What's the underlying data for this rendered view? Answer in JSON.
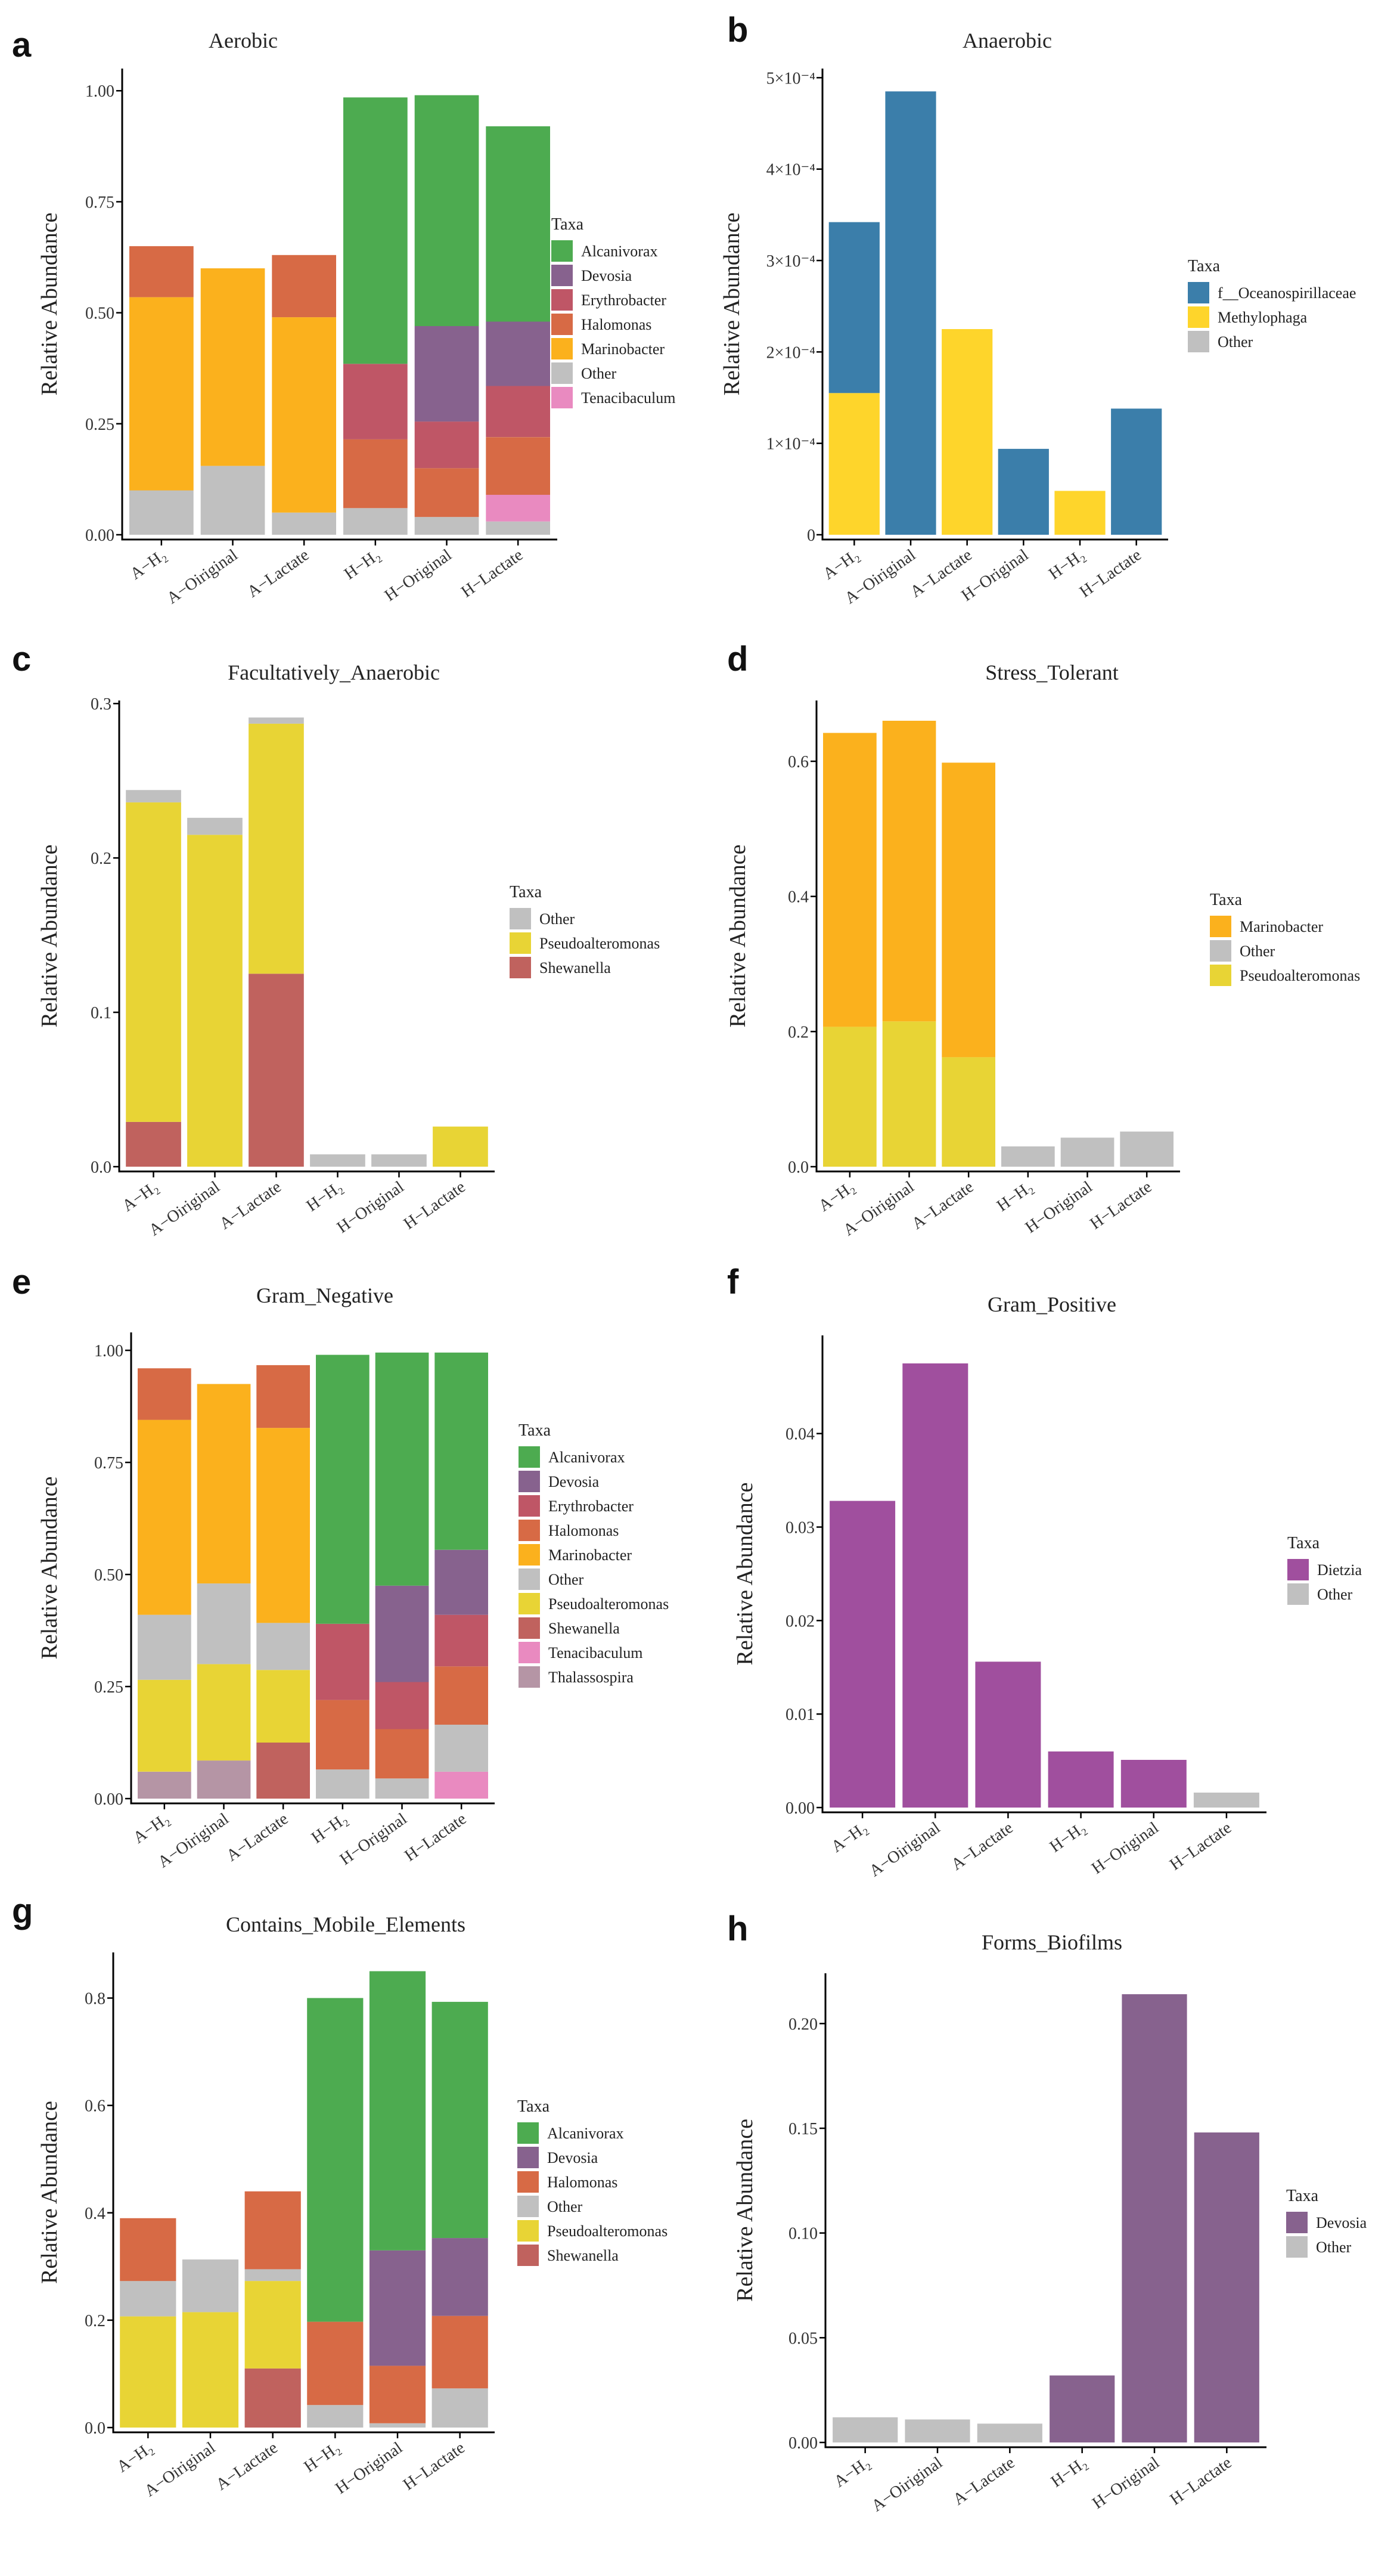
{
  "colors": {
    "Alcanivorax": "#4dab50",
    "Devosia": "#87628e",
    "Erythrobacter": "#bf5666",
    "Halomonas": "#d76a45",
    "Marinobacter": "#fbb11d",
    "Other": "#c0c0c0",
    "Tenacibaculum": "#e98ac0",
    "f__Oceanospirillaceae": "#3b7eaa",
    "Methylophaga": "#fed52b",
    "Pseudoalteromonas": "#e8d435",
    "Shewanella": "#c0625e",
    "Thalassospira": "#b595a5",
    "Dietzia": "#a04f9e"
  },
  "chart_data": [
    {
      "letter": "a",
      "type": "bar",
      "stacked": true,
      "title": "Aerobic",
      "ylabel": "Relative Abundance",
      "categories": [
        "A−H₂",
        "A−Oiriginal",
        "A−Lactate",
        "H−H₂",
        "H−Original",
        "H−Lactate"
      ],
      "ylim": [
        0,
        1.05
      ],
      "yticks": [
        0.0,
        0.25,
        0.5,
        0.75,
        1.0
      ],
      "tick_labels": [
        "0.00",
        "0.25",
        "0.50",
        "0.75",
        "1.00"
      ],
      "legend_title": "Taxa",
      "legend": [
        "Alcanivorax",
        "Devosia",
        "Erythrobacter",
        "Halomonas",
        "Marinobacter",
        "Other",
        "Tenacibaculum"
      ],
      "series": [
        {
          "name": "Other",
          "values": [
            0.1,
            0.155,
            0.05,
            0.06,
            0.04,
            0.03
          ]
        },
        {
          "name": "Tenacibaculum",
          "values": [
            0,
            0,
            0,
            0,
            0,
            0.06
          ]
        },
        {
          "name": "Marinobacter",
          "values": [
            0.435,
            0.445,
            0.44,
            0,
            0,
            0
          ]
        },
        {
          "name": "Halomonas",
          "values": [
            0.115,
            0,
            0.14,
            0.155,
            0.11,
            0.13
          ]
        },
        {
          "name": "Erythrobacter",
          "values": [
            0,
            0,
            0,
            0.17,
            0.105,
            0.115
          ]
        },
        {
          "name": "Devosia",
          "values": [
            0,
            0,
            0,
            0,
            0.215,
            0.145
          ]
        },
        {
          "name": "Alcanivorax",
          "values": [
            0,
            0,
            0,
            0.6,
            0.52,
            0.44
          ]
        }
      ]
    },
    {
      "letter": "b",
      "type": "bar",
      "stacked": true,
      "title": "Anaerobic",
      "ylabel": "Relative Abundance",
      "categories": [
        "A−H₂",
        "A−Oiriginal",
        "A−Lactate",
        "H−Original",
        "H−H₂",
        "H−Lactate"
      ],
      "ylim": [
        0,
        0.00051
      ],
      "yticks": [
        0,
        0.0001,
        0.0002,
        0.0003,
        0.0004,
        0.0005
      ],
      "tick_labels": [
        "0",
        "1×10⁻⁴",
        "2×10⁻⁴",
        "3×10⁻⁴",
        "4×10⁻⁴",
        "5×10⁻⁴"
      ],
      "legend_title": "Taxa",
      "legend": [
        "f__Oceanospirillaceae",
        "Methylophaga",
        "Other"
      ],
      "series": [
        {
          "name": "Methylophaga",
          "values": [
            0.000155,
            0,
            0.000225,
            0,
            4.8e-05,
            0
          ]
        },
        {
          "name": "f__Oceanospirillaceae",
          "values": [
            0.000187,
            0.000485,
            0,
            9.4e-05,
            0,
            0.000138
          ]
        }
      ]
    },
    {
      "letter": "c",
      "type": "bar",
      "stacked": true,
      "title": "Facultatively_Anaerobic",
      "ylabel": "Relative Abundance",
      "categories": [
        "A−H₂",
        "A−Oiriginal",
        "A−Lactate",
        "H−H₂",
        "H−Original",
        "H−Lactate"
      ],
      "ylim": [
        0,
        0.302
      ],
      "yticks": [
        0.0,
        0.1,
        0.2,
        0.3
      ],
      "tick_labels": [
        "0.0",
        "0.1",
        "0.2",
        "0.3"
      ],
      "legend_title": "Taxa",
      "legend": [
        "Other",
        "Pseudoalteromonas",
        "Shewanella"
      ],
      "series": [
        {
          "name": "Shewanella",
          "values": [
            0.029,
            0,
            0.125,
            0,
            0,
            0
          ]
        },
        {
          "name": "Pseudoalteromonas",
          "values": [
            0.207,
            0.215,
            0.162,
            0,
            0,
            0.026
          ]
        },
        {
          "name": "Other",
          "values": [
            0.008,
            0.011,
            0.004,
            0.008,
            0.008,
            0
          ]
        }
      ]
    },
    {
      "letter": "d",
      "type": "bar",
      "stacked": true,
      "title": "Stress_Tolerant",
      "ylabel": "Relative Abundance",
      "categories": [
        "A−H₂",
        "A−Oiriginal",
        "A−Lactate",
        "H−H₂",
        "H−Original",
        "H−Lactate"
      ],
      "ylim": [
        0,
        0.69
      ],
      "yticks": [
        0.0,
        0.2,
        0.4,
        0.6
      ],
      "tick_labels": [
        "0.0",
        "0.2",
        "0.4",
        "0.6"
      ],
      "legend_title": "Taxa",
      "legend": [
        "Marinobacter",
        "Other",
        "Pseudoalteromonas"
      ],
      "series": [
        {
          "name": "Pseudoalteromonas",
          "values": [
            0.207,
            0.215,
            0.162,
            0,
            0,
            0
          ]
        },
        {
          "name": "Marinobacter",
          "values": [
            0.435,
            0.445,
            0.436,
            0,
            0,
            0
          ]
        },
        {
          "name": "Other",
          "values": [
            0,
            0,
            0,
            0.03,
            0.043,
            0.052
          ]
        }
      ]
    },
    {
      "letter": "e",
      "type": "bar",
      "stacked": true,
      "title": "Gram_Negative",
      "ylabel": "Relative Abundance",
      "categories": [
        "A−H₂",
        "A−Oiriginal",
        "A−Lactate",
        "H−H₂",
        "H−Original",
        "H−Lactate"
      ],
      "ylim": [
        0,
        1.04
      ],
      "yticks": [
        0.0,
        0.25,
        0.5,
        0.75,
        1.0
      ],
      "tick_labels": [
        "0.00",
        "0.25",
        "0.50",
        "0.75",
        "1.00"
      ],
      "legend_title": "Taxa",
      "legend": [
        "Alcanivorax",
        "Devosia",
        "Erythrobacter",
        "Halomonas",
        "Marinobacter",
        "Other",
        "Pseudoalteromonas",
        "Shewanella",
        "Tenacibaculum",
        "Thalassospira"
      ],
      "series": [
        {
          "name": "Tenacibaculum",
          "values": [
            0,
            0,
            0,
            0,
            0,
            0.06
          ]
        },
        {
          "name": "Thalassospira",
          "values": [
            0.06,
            0.085,
            0,
            0,
            0,
            0
          ]
        },
        {
          "name": "Shewanella",
          "values": [
            0,
            0,
            0.125,
            0,
            0,
            0
          ]
        },
        {
          "name": "Pseudoalteromonas",
          "values": [
            0.205,
            0.215,
            0.162,
            0,
            0,
            0
          ]
        },
        {
          "name": "Other",
          "values": [
            0.145,
            0.18,
            0.105,
            0.065,
            0.045,
            0.105
          ]
        },
        {
          "name": "Marinobacter",
          "values": [
            0.435,
            0.445,
            0.435,
            0,
            0,
            0
          ]
        },
        {
          "name": "Halomonas",
          "values": [
            0.115,
            0,
            0.14,
            0.155,
            0.11,
            0.13
          ]
        },
        {
          "name": "Erythrobacter",
          "values": [
            0,
            0,
            0,
            0.17,
            0.105,
            0.115
          ]
        },
        {
          "name": "Devosia",
          "values": [
            0,
            0,
            0,
            0,
            0.215,
            0.145
          ]
        },
        {
          "name": "Alcanivorax",
          "values": [
            0,
            0,
            0,
            0.6,
            0.52,
            0.44
          ]
        }
      ]
    },
    {
      "letter": "f",
      "type": "bar",
      "stacked": true,
      "title": "Gram_Positive",
      "ylabel": "Relative Abundance",
      "categories": [
        "A−H₂",
        "A−Oiriginal",
        "A−Lactate",
        "H−H₂",
        "H−Original",
        "H−Lactate"
      ],
      "ylim": [
        0,
        0.0505
      ],
      "yticks": [
        0.0,
        0.01,
        0.02,
        0.03,
        0.04
      ],
      "tick_labels": [
        "0.00",
        "0.01",
        "0.02",
        "0.03",
        "0.04"
      ],
      "legend_title": "Taxa",
      "legend": [
        "Dietzia",
        "Other"
      ],
      "series": [
        {
          "name": "Dietzia",
          "values": [
            0.0328,
            0.0475,
            0.0156,
            0.006,
            0.0051,
            0
          ]
        },
        {
          "name": "Other",
          "values": [
            0,
            0,
            0,
            0,
            0,
            0.0016
          ]
        }
      ]
    },
    {
      "letter": "g",
      "type": "bar",
      "stacked": true,
      "title": "Contains_Mobile_Elements",
      "ylabel": "Relative Abundance",
      "categories": [
        "A−H₂",
        "A−Oiriginal",
        "A−Lactate",
        "H−H₂",
        "H−Original",
        "H−Lactate"
      ],
      "ylim": [
        0,
        0.885
      ],
      "yticks": [
        0.0,
        0.2,
        0.4,
        0.6,
        0.8
      ],
      "tick_labels": [
        "0.0",
        "0.2",
        "0.4",
        "0.6",
        "0.8"
      ],
      "legend_title": "Taxa",
      "legend": [
        "Alcanivorax",
        "Devosia",
        "Halomonas",
        "Other",
        "Pseudoalteromonas",
        "Shewanella"
      ],
      "series": [
        {
          "name": "Shewanella",
          "values": [
            0,
            0,
            0.11,
            0,
            0,
            0
          ]
        },
        {
          "name": "Other",
          "values": [
            0,
            0,
            0,
            0.042,
            0.008,
            0.073
          ]
        },
        {
          "name": "Pseudoalteromonas",
          "values": [
            0.207,
            0.215,
            0.163,
            0,
            0,
            0
          ]
        },
        {
          "name": "Other",
          "values": [
            0.066,
            0.098,
            0.022,
            0,
            0,
            0
          ]
        },
        {
          "name": "Halomonas",
          "values": [
            0.117,
            0,
            0.145,
            0.155,
            0.107,
            0.135
          ]
        },
        {
          "name": "Devosia",
          "values": [
            0,
            0,
            0,
            0,
            0.215,
            0.145
          ]
        },
        {
          "name": "Alcanivorax",
          "values": [
            0,
            0,
            0,
            0.603,
            0.52,
            0.44
          ]
        }
      ]
    },
    {
      "letter": "h",
      "type": "bar",
      "stacked": true,
      "title": "Forms_Biofilms",
      "ylabel": "Relative Abundance",
      "categories": [
        "A−H₂",
        "A−Oiriginal",
        "A−Lactate",
        "H−H₂",
        "H−Original",
        "H−Lactate"
      ],
      "ylim": [
        0,
        0.224
      ],
      "yticks": [
        0.0,
        0.05,
        0.1,
        0.15,
        0.2
      ],
      "tick_labels": [
        "0.00",
        "0.05",
        "0.10",
        "0.15",
        "0.20"
      ],
      "legend_title": "Taxa",
      "legend": [
        "Devosia",
        "Other"
      ],
      "series": [
        {
          "name": "Other",
          "values": [
            0.012,
            0.011,
            0.009,
            0,
            0,
            0
          ]
        },
        {
          "name": "Devosia",
          "values": [
            0,
            0,
            0,
            0.032,
            0.214,
            0.148
          ]
        }
      ]
    }
  ]
}
